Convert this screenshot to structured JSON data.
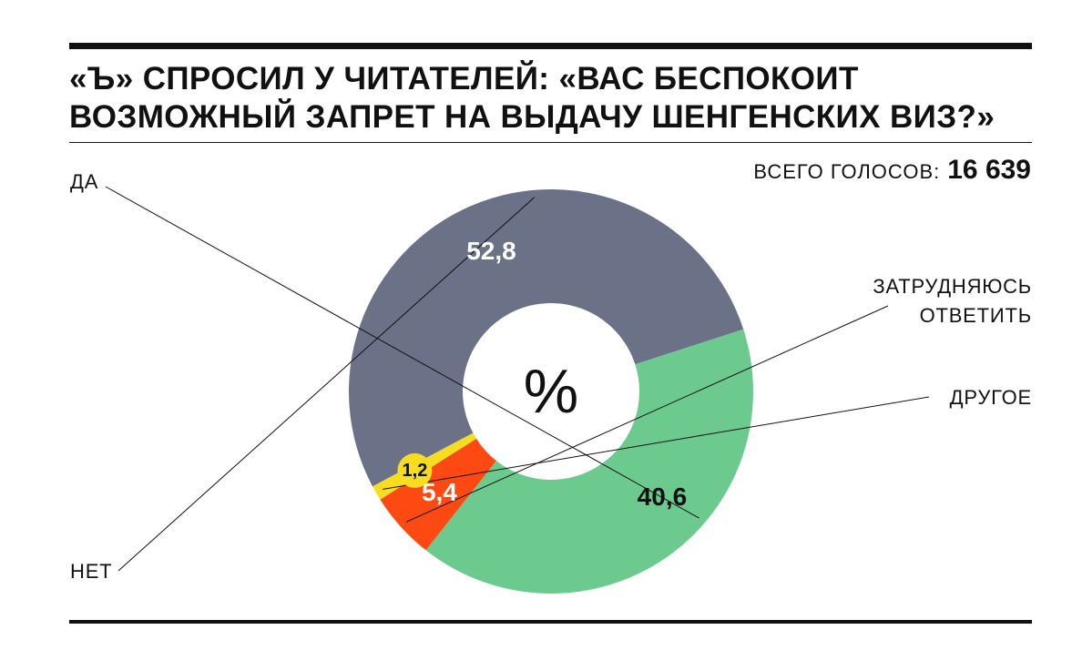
{
  "header": {
    "title_line1": "«Ъ» СПРОСИЛ У ЧИТАТЕЛЕЙ: «ВАС БЕСПОКОИТ",
    "title_line2": "ВОЗМОЖНЫЙ ЗАПРЕТ НА ВЫДАЧУ ШЕНГЕНСКИХ ВИЗ?»",
    "total_label": "ВСЕГО ГОЛОСОВ:",
    "total_value": "16 639"
  },
  "chart_data": {
    "type": "pie",
    "title": "«Ъ» СПРОСИЛ У ЧИТАТЕЛЕЙ: «ВАС БЕСПОКОИТ ВОЗМОЖНЫЙ ЗАПРЕТ НА ВЫДАЧУ ШЕНГЕНСКИХ ВИЗ?»",
    "center_label": "%",
    "total_votes": 16639,
    "slices": [
      {
        "label": "ДА",
        "value": 40.6,
        "display": "40,6",
        "color": "#6dca8f",
        "text_color": "#111111"
      },
      {
        "label": "ЗАТРУДНЯЮСЬ ОТВЕТИТЬ",
        "label_lines": [
          "ЗАТРУДНЯЮСЬ",
          "ОТВЕТИТЬ"
        ],
        "value": 5.4,
        "display": "5,4",
        "color": "#fc4a12",
        "text_color": "#ffffff"
      },
      {
        "label": "ДРУГОЕ",
        "value": 1.2,
        "display": "1,2",
        "color": "#f6dd20",
        "text_color": "#111111"
      },
      {
        "label": "НЕТ",
        "value": 52.8,
        "display": "52,8",
        "color": "#6b7187",
        "text_color": "#ffffff"
      }
    ]
  }
}
